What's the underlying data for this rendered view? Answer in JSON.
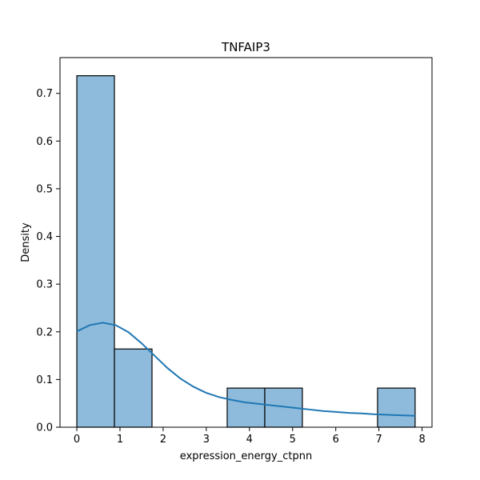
{
  "chart_data": {
    "type": "histogram",
    "title": "TNFAIP3",
    "xlabel": "expression_energy_ctpnn",
    "ylabel": "Density",
    "xlim": [
      -0.39,
      8.23
    ],
    "ylim": [
      0,
      0.775
    ],
    "xticks": [
      0,
      1,
      2,
      3,
      4,
      5,
      6,
      7,
      8
    ],
    "yticks": [
      0.0,
      0.1,
      0.2,
      0.3,
      0.4,
      0.5,
      0.6,
      0.7
    ],
    "bins": [
      {
        "x0": 0.0,
        "x1": 0.871,
        "density": 0.737
      },
      {
        "x0": 0.871,
        "x1": 1.742,
        "density": 0.164
      },
      {
        "x0": 1.742,
        "x1": 2.613,
        "density": 0.0
      },
      {
        "x0": 2.613,
        "x1": 3.484,
        "density": 0.0
      },
      {
        "x0": 3.484,
        "x1": 4.355,
        "density": 0.082
      },
      {
        "x0": 4.355,
        "x1": 5.226,
        "density": 0.082
      },
      {
        "x0": 5.226,
        "x1": 6.097,
        "density": 0.0
      },
      {
        "x0": 6.097,
        "x1": 6.968,
        "density": 0.0
      },
      {
        "x0": 6.968,
        "x1": 7.839,
        "density": 0.082
      }
    ],
    "kde": {
      "x": [
        0.0,
        0.3,
        0.6,
        0.9,
        1.2,
        1.5,
        1.8,
        2.1,
        2.4,
        2.7,
        3.0,
        3.3,
        3.6,
        3.9,
        4.2,
        4.5,
        4.8,
        5.1,
        5.4,
        5.7,
        6.0,
        6.3,
        6.6,
        6.9,
        7.2,
        7.5,
        7.84
      ],
      "y": [
        0.201,
        0.214,
        0.219,
        0.214,
        0.199,
        0.176,
        0.15,
        0.124,
        0.102,
        0.085,
        0.072,
        0.063,
        0.057,
        0.052,
        0.049,
        0.046,
        0.043,
        0.04,
        0.037,
        0.034,
        0.032,
        0.03,
        0.029,
        0.027,
        0.026,
        0.025,
        0.024
      ]
    },
    "colors": {
      "bar_fill": "#8ebbdb",
      "bar_edge": "#000000",
      "kde_line": "#1f77b4"
    }
  }
}
